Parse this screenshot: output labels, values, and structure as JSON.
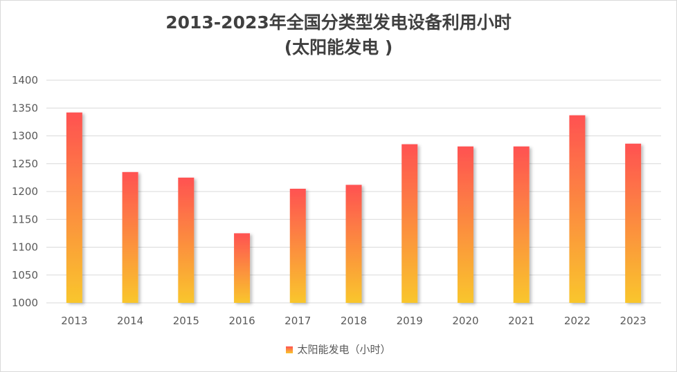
{
  "chart_data": {
    "type": "bar",
    "title": "2013-2023年全国分类型发电设备利用小时",
    "subtitle": "(太阳能发电 )",
    "categories": [
      "2013",
      "2014",
      "2015",
      "2016",
      "2017",
      "2018",
      "2019",
      "2020",
      "2021",
      "2022",
      "2023"
    ],
    "series": [
      {
        "name": "太阳能发电（小时）",
        "values": [
          1342,
          1235,
          1225,
          1125,
          1205,
          1212,
          1285,
          1281,
          1281,
          1337,
          1286
        ]
      }
    ],
    "ylim": [
      1000,
      1400
    ],
    "yticks": [
      "1000",
      "1050",
      "1100",
      "1150",
      "1200",
      "1250",
      "1300",
      "1350",
      "1400"
    ],
    "grid": true,
    "legend_position": "bottom",
    "colors": {
      "bar_top": "#ff5252",
      "bar_bottom": "#f9c62c",
      "grid": "#d9d9d9",
      "text": "#595959"
    }
  }
}
